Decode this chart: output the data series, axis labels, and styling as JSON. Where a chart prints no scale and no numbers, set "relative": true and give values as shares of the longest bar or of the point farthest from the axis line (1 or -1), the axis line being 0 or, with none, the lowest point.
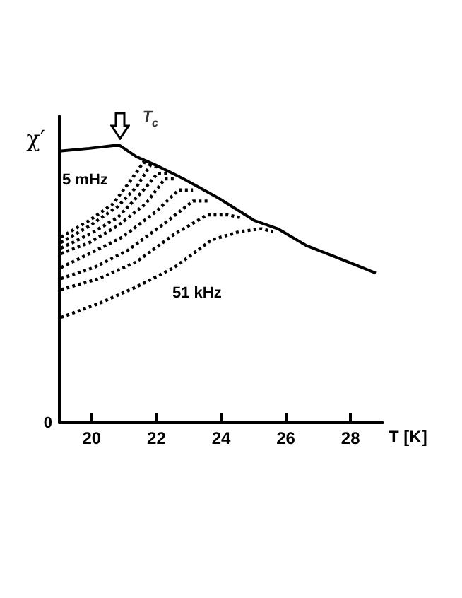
{
  "chart_data": {
    "type": "line",
    "relative": true,
    "xlabel": "T [K]",
    "ylabel": "χ′",
    "xlim": [
      19,
      29
    ],
    "xticks": [
      20,
      22,
      24,
      26,
      28
    ],
    "marker": "none",
    "annotations": [
      {
        "text": "T$_{c}$",
        "x": 20.87,
        "y": 1
      },
      "5 mHz",
      "51 kHz",
      "0"
    ],
    "series": [
      {
        "color": "#000000",
        "line_style": "solid",
        "x": [
          19,
          19.93,
          20.66,
          20.87,
          21.38,
          21.97,
          22.84,
          23.93,
          25.02,
          25.75,
          26.62,
          27.5,
          28.78
        ],
        "values": [
          0.98,
          0.99,
          1,
          1,
          0.96,
          0.93,
          0.88,
          0.81,
          0.73,
          0.7,
          0.64,
          0.6,
          0.54
        ]
      },
      {
        "color": "#000000",
        "line_style": "dotted",
        "x": [
          19.05,
          19.93,
          20.66,
          21.24,
          21.6,
          21.89
        ],
        "values": [
          0.67,
          0.73,
          0.79,
          0.88,
          0.94,
          0.93
        ]
      },
      {
        "color": "#000000",
        "line_style": "dotted",
        "x": [
          19.05,
          19.93,
          20.8,
          21.38,
          21.82,
          22.11
        ],
        "values": [
          0.65,
          0.71,
          0.78,
          0.85,
          0.93,
          0.92
        ]
      },
      {
        "color": "#000000",
        "line_style": "dotted",
        "x": [
          19.05,
          19.93,
          20.8,
          21.53,
          22.04,
          22.33
        ],
        "values": [
          0.63,
          0.68,
          0.74,
          0.83,
          0.9,
          0.9
        ]
      },
      {
        "color": "#000000",
        "line_style": "dotted",
        "x": [
          19.05,
          19.93,
          20.8,
          21.67,
          22.26,
          22.62
        ],
        "values": [
          0.61,
          0.65,
          0.71,
          0.79,
          0.88,
          0.88
        ]
      },
      {
        "color": "#000000",
        "line_style": "dotted",
        "x": [
          19.05,
          19.93,
          20.95,
          21.97,
          22.69,
          23.13
        ],
        "values": [
          0.56,
          0.61,
          0.67,
          0.76,
          0.84,
          0.84
        ]
      },
      {
        "color": "#000000",
        "line_style": "dotted",
        "x": [
          19.05,
          20.07,
          21.09,
          22.26,
          23.13,
          23.64
        ],
        "values": [
          0.52,
          0.56,
          0.62,
          0.72,
          0.8,
          0.8
        ]
      },
      {
        "color": "#000000",
        "line_style": "dotted",
        "x": [
          19.05,
          20.22,
          21.38,
          22.55,
          23.57,
          24.22,
          24.59
        ],
        "values": [
          0.48,
          0.52,
          0.58,
          0.68,
          0.75,
          0.75,
          0.74
        ]
      },
      {
        "color": "#000000",
        "line_style": "dotted",
        "x": [
          19.05,
          20.22,
          21.38,
          22.55,
          23.71,
          24.59,
          25.24,
          25.6
        ],
        "values": [
          0.38,
          0.43,
          0.49,
          0.56,
          0.66,
          0.69,
          0.7,
          0.69
        ]
      }
    ]
  }
}
